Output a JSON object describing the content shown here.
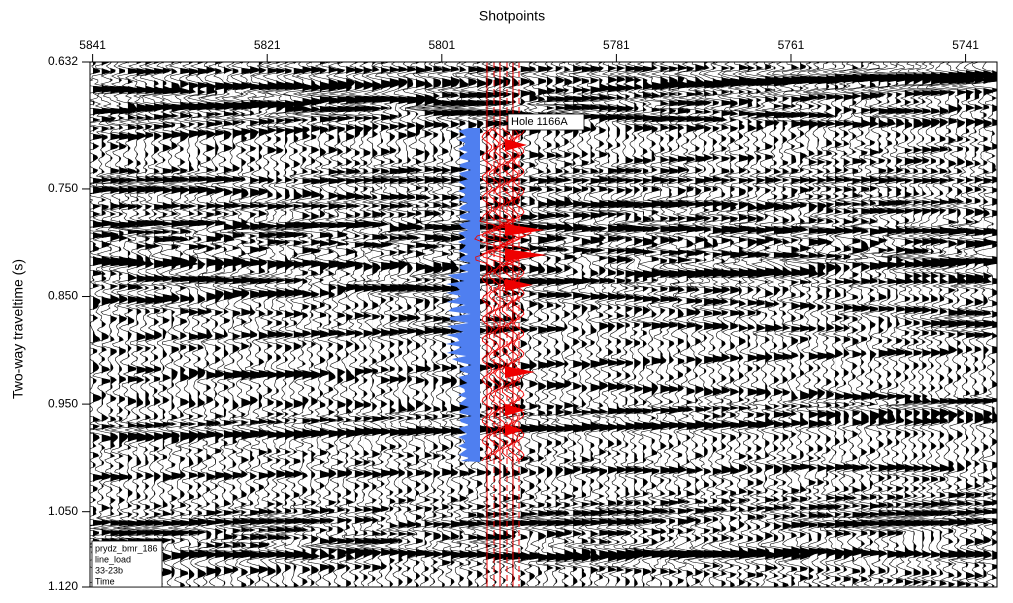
{
  "chart_data": {
    "type": "seismic",
    "x_label": "Shotpoints",
    "y_label": "Two-way traveltime (s)",
    "xlim": [
      5841.3,
      5737.4
    ],
    "xticks": [
      5841,
      5821,
      5801,
      5781,
      5761,
      5741
    ],
    "ylim": [
      0.632,
      1.12
    ],
    "yticks": [
      0.632,
      {
        "value": 0.75,
        "label": "0.750"
      },
      {
        "value": 0.85,
        "label": "0.850"
      },
      {
        "value": 0.95,
        "label": "0.950"
      },
      {
        "value": 1.05,
        "label": "1.050"
      },
      {
        "value": 1.12,
        "label": "1.120"
      }
    ],
    "annotation": "Hole 1166A",
    "info_box": [
      "prydz_bmr_186",
      "line_load",
      "33-23b",
      "Time"
    ]
  }
}
